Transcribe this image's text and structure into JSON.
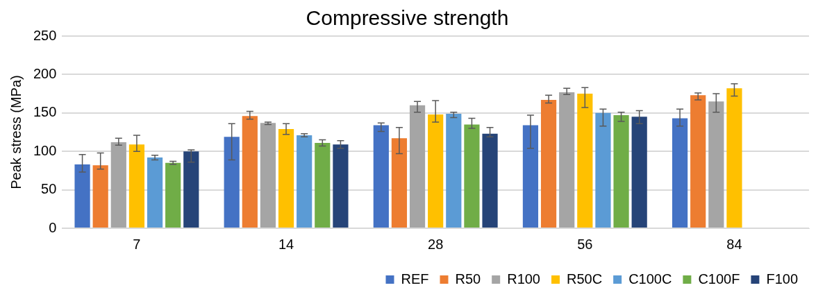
{
  "chart_data": {
    "type": "bar",
    "title": "Compressive strength",
    "ylabel": "Peak stress (MPa)",
    "categories": [
      "7",
      "14",
      "28",
      "56",
      "84"
    ],
    "ylim": [
      0,
      250
    ],
    "yticks": [
      0,
      50,
      100,
      150,
      200,
      250
    ],
    "grid": "y",
    "legend": "bottom",
    "series": [
      {
        "name": "REF",
        "color": "#4472c4",
        "values": [
          83,
          119,
          134,
          134,
          143
        ],
        "errors": [
          [
            73,
            96
          ],
          [
            89,
            136
          ],
          [
            126,
            137
          ],
          [
            104,
            147
          ],
          [
            133,
            155
          ]
        ]
      },
      {
        "name": "R50",
        "color": "#ed7d31",
        "values": [
          82,
          146,
          117,
          167,
          173
        ],
        "errors": [
          [
            77,
            98
          ],
          [
            142,
            152
          ],
          [
            97,
            131
          ],
          [
            163,
            173
          ],
          [
            167,
            176
          ]
        ]
      },
      {
        "name": "R100",
        "color": "#a5a5a5",
        "values": [
          112,
          137,
          160,
          177,
          165
        ],
        "errors": [
          [
            108,
            117
          ],
          [
            135,
            138
          ],
          [
            151,
            165
          ],
          [
            174,
            182
          ],
          [
            151,
            175
          ]
        ]
      },
      {
        "name": "R50C",
        "color": "#ffc000",
        "values": [
          109,
          129,
          148,
          175,
          182
        ],
        "errors": [
          [
            100,
            121
          ],
          [
            122,
            136
          ],
          [
            138,
            166
          ],
          [
            157,
            183
          ],
          [
            172,
            188
          ]
        ]
      },
      {
        "name": "C100C",
        "color": "#5b9bd5",
        "values": [
          92,
          121,
          149,
          150,
          null
        ],
        "errors": [
          [
            89,
            95
          ],
          [
            119,
            123
          ],
          [
            144,
            151
          ],
          [
            133,
            155
          ],
          null
        ]
      },
      {
        "name": "C100F",
        "color": "#70ad47",
        "values": [
          85,
          111,
          135,
          147,
          null
        ],
        "errors": [
          [
            83,
            87
          ],
          [
            107,
            115
          ],
          [
            130,
            143
          ],
          [
            139,
            151
          ],
          null
        ]
      },
      {
        "name": "F100",
        "color": "#264478",
        "values": [
          100,
          109,
          123,
          145,
          null
        ],
        "errors": [
          [
            86,
            102
          ],
          [
            104,
            114
          ],
          [
            119,
            131
          ],
          [
            136,
            153
          ],
          null
        ]
      }
    ]
  }
}
